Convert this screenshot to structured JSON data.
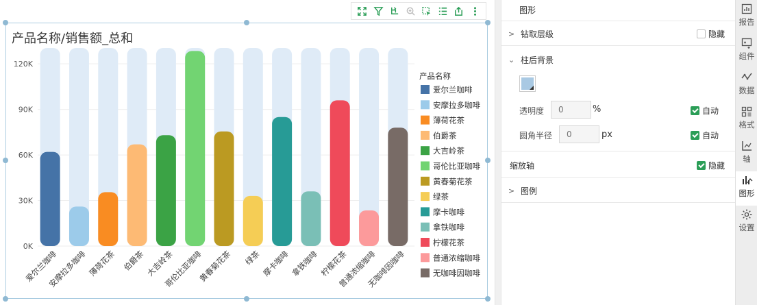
{
  "chart": {
    "title": "产品名称/销售额_总和"
  },
  "chart_data": {
    "type": "bar",
    "title": "产品名称/销售额_总和",
    "xlabel": "",
    "ylabel": "",
    "ylim": [
      0,
      130000
    ],
    "yticks": [
      0,
      30000,
      60000,
      90000,
      120000
    ],
    "ytick_labels": [
      "0K",
      "30K",
      "60K",
      "90K",
      "120K"
    ],
    "categories": [
      "爱尔兰咖啡",
      "安摩拉多咖啡",
      "薄荷花茶",
      "伯爵茶",
      "大吉岭茶",
      "哥伦比亚咖啡",
      "黄春菊花茶",
      "绿茶",
      "摩卡咖啡",
      "拿铁咖啡",
      "柠檬花茶",
      "普通浓缩咖啡",
      "无咖啡因咖啡"
    ],
    "values": [
      62000,
      26000,
      35500,
      67000,
      73000,
      128500,
      75500,
      33000,
      85000,
      36000,
      96000,
      23500,
      78000
    ],
    "colors": [
      "#4573a7",
      "#9ccbea",
      "#f98c22",
      "#fdba74",
      "#3ba345",
      "#72d472",
      "#bb9a22",
      "#f5cd55",
      "#279b96",
      "#7abfb6",
      "#ef4a5a",
      "#fc9a9b",
      "#786b66"
    ],
    "background_bar_color": "#dfebf7",
    "legend": {
      "title": "产品名称",
      "position": "right",
      "entries": [
        "爱尔兰咖啡",
        "安摩拉多咖啡",
        "薄荷花茶",
        "伯爵茶",
        "大吉岭茶",
        "哥伦比亚咖啡",
        "黄春菊花茶",
        "绿茶",
        "摩卡咖啡",
        "拿铁咖啡",
        "柠檬花茶",
        "普通浓缩咖啡",
        "无咖啡因咖啡"
      ]
    }
  },
  "panel": {
    "title": "图形",
    "drill": {
      "label": "钻取层级",
      "hide_label": "隐藏"
    },
    "bar_background": {
      "label": "柱后背景",
      "opacity_label": "透明度",
      "opacity_value": "",
      "opacity_placeholder": "0",
      "opacity_unit": "%",
      "opacity_auto": "自动",
      "radius_label": "圆角半径",
      "radius_value": "",
      "radius_placeholder": "0",
      "radius_unit": "px",
      "radius_auto": "自动"
    },
    "zoom_axis": {
      "label": "缩放轴",
      "hide_label": "隐藏"
    },
    "legend_section": {
      "label": "图例"
    }
  },
  "sidebar": {
    "items": [
      {
        "label": "报告",
        "icon": "report-icon"
      },
      {
        "label": "组件",
        "icon": "component-icon"
      },
      {
        "label": "数据",
        "icon": "data-icon"
      },
      {
        "label": "格式",
        "icon": "format-icon"
      },
      {
        "label": "轴",
        "icon": "axis-icon"
      },
      {
        "label": "图形",
        "icon": "graph-icon"
      },
      {
        "label": "设置",
        "icon": "settings-icon"
      }
    ]
  }
}
